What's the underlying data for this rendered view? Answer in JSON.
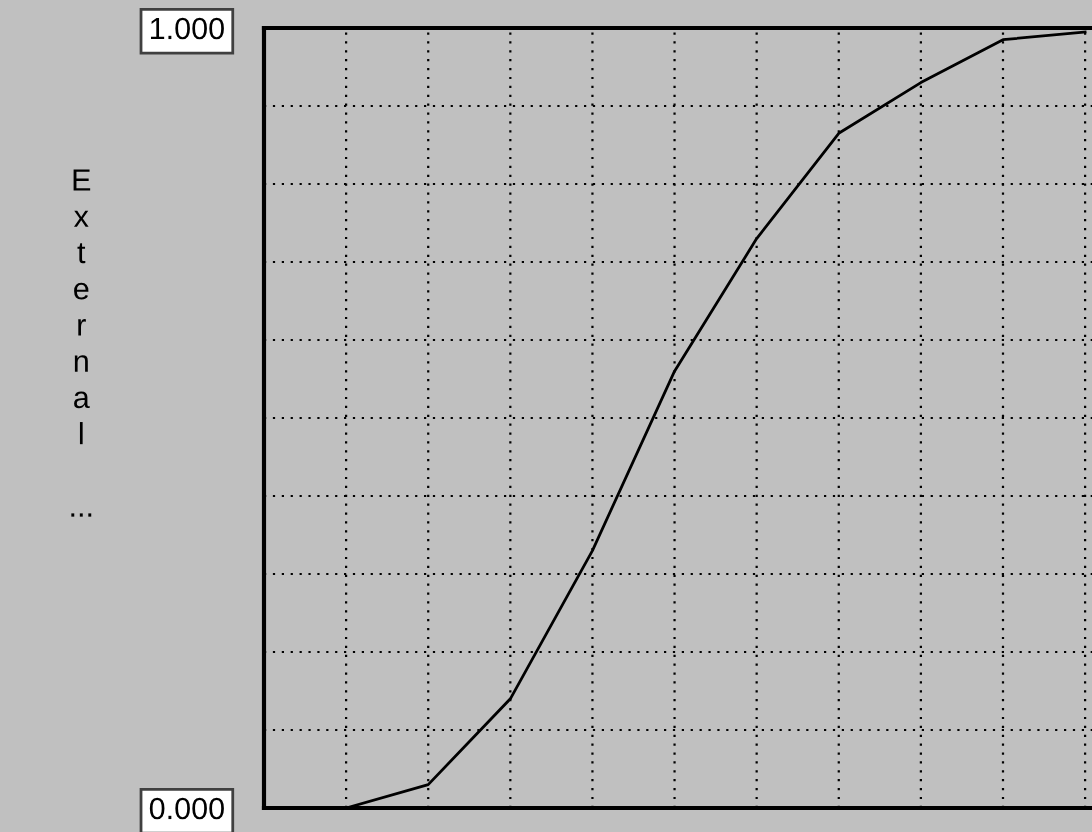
{
  "chart_data": {
    "type": "line",
    "ylabel": "External ...",
    "categories": [
      null,
      null,
      null,
      null,
      null,
      null,
      null,
      null,
      null,
      null,
      null
    ],
    "series": [
      {
        "color": "#000000",
        "values": [
          0,
          0,
          0.03,
          0.14,
          0.33,
          0.56,
          0.73,
          0.865,
          0.93,
          0.985,
          0.995
        ]
      }
    ],
    "ylim": [
      0,
      1
    ],
    "yticks": [
      {
        "value": 0,
        "label": "0.000"
      },
      {
        "value": 1,
        "label": "1.000"
      }
    ],
    "grid": true,
    "line_style": "solid",
    "marker": "none",
    "legend": false
  }
}
